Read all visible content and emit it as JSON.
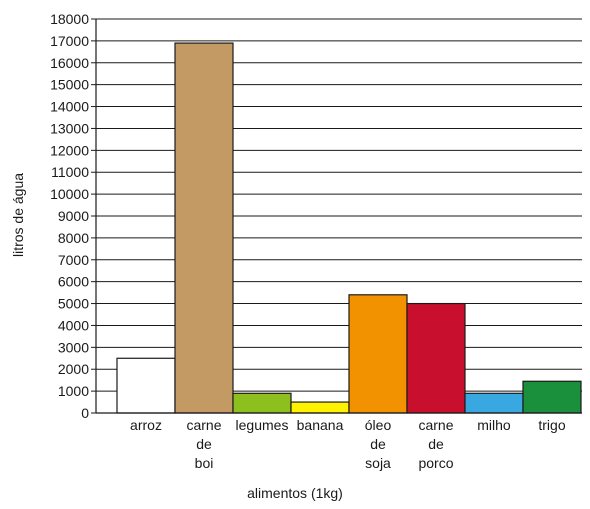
{
  "chart_data": {
    "type": "bar",
    "title": "",
    "xlabel": "alimentos (1kg)",
    "ylabel": "litros de água",
    "ylim": [
      0,
      18000
    ],
    "yticks": [
      0,
      1000,
      2000,
      3000,
      4000,
      5000,
      6000,
      7000,
      8000,
      9000,
      10000,
      11000,
      12000,
      13000,
      14000,
      15000,
      16000,
      17000,
      18000
    ],
    "grid": true,
    "categories": [
      [
        "arroz"
      ],
      [
        "carne",
        "de",
        "boi"
      ],
      [
        "legumes"
      ],
      [
        "banana"
      ],
      [
        "óleo",
        "de",
        "soja"
      ],
      [
        "carne",
        "de",
        "porco"
      ],
      [
        "milho"
      ],
      [
        "trigo"
      ]
    ],
    "values": [
      2500,
      16900,
      900,
      500,
      5400,
      5000,
      900,
      1450
    ],
    "colors": [
      "#ffffff",
      "#c49a64",
      "#8dbf1f",
      "#fff200",
      "#f39200",
      "#c8102e",
      "#3aa8e0",
      "#1a8f3c"
    ]
  }
}
